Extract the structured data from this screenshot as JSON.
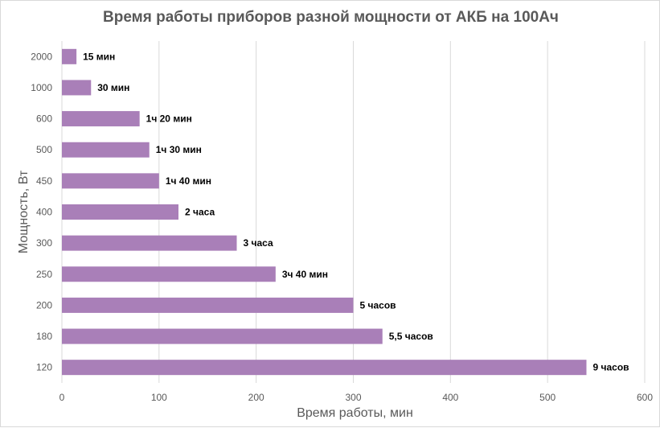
{
  "chart_data": {
    "type": "bar",
    "orientation": "horizontal",
    "title": "Время работы приборов разной мощности от АКБ на 100Ач",
    "xlabel": "Время работы, мин",
    "ylabel": "Мощность, Вт",
    "categories": [
      "2000",
      "1000",
      "600",
      "500",
      "450",
      "400",
      "300",
      "250",
      "200",
      "180",
      "120"
    ],
    "values": [
      15,
      30,
      80,
      90,
      100,
      120,
      180,
      220,
      300,
      330,
      540
    ],
    "data_labels": [
      "15 мин",
      "30 мин",
      "1ч 20 мин",
      "1ч 30 мин",
      "1ч 40 мин",
      "2 часа",
      "3 часа",
      "3ч 40 мин",
      "5 часов",
      "5,5 часов",
      "9 часов"
    ],
    "xlim": [
      0,
      600
    ],
    "xticks": [
      0,
      100,
      200,
      300,
      400,
      500,
      600
    ],
    "grid": "vertical",
    "legend": "none",
    "bar_color": "#A97FB8",
    "grid_color": "#d9d9d9",
    "text_color": "#595959"
  }
}
